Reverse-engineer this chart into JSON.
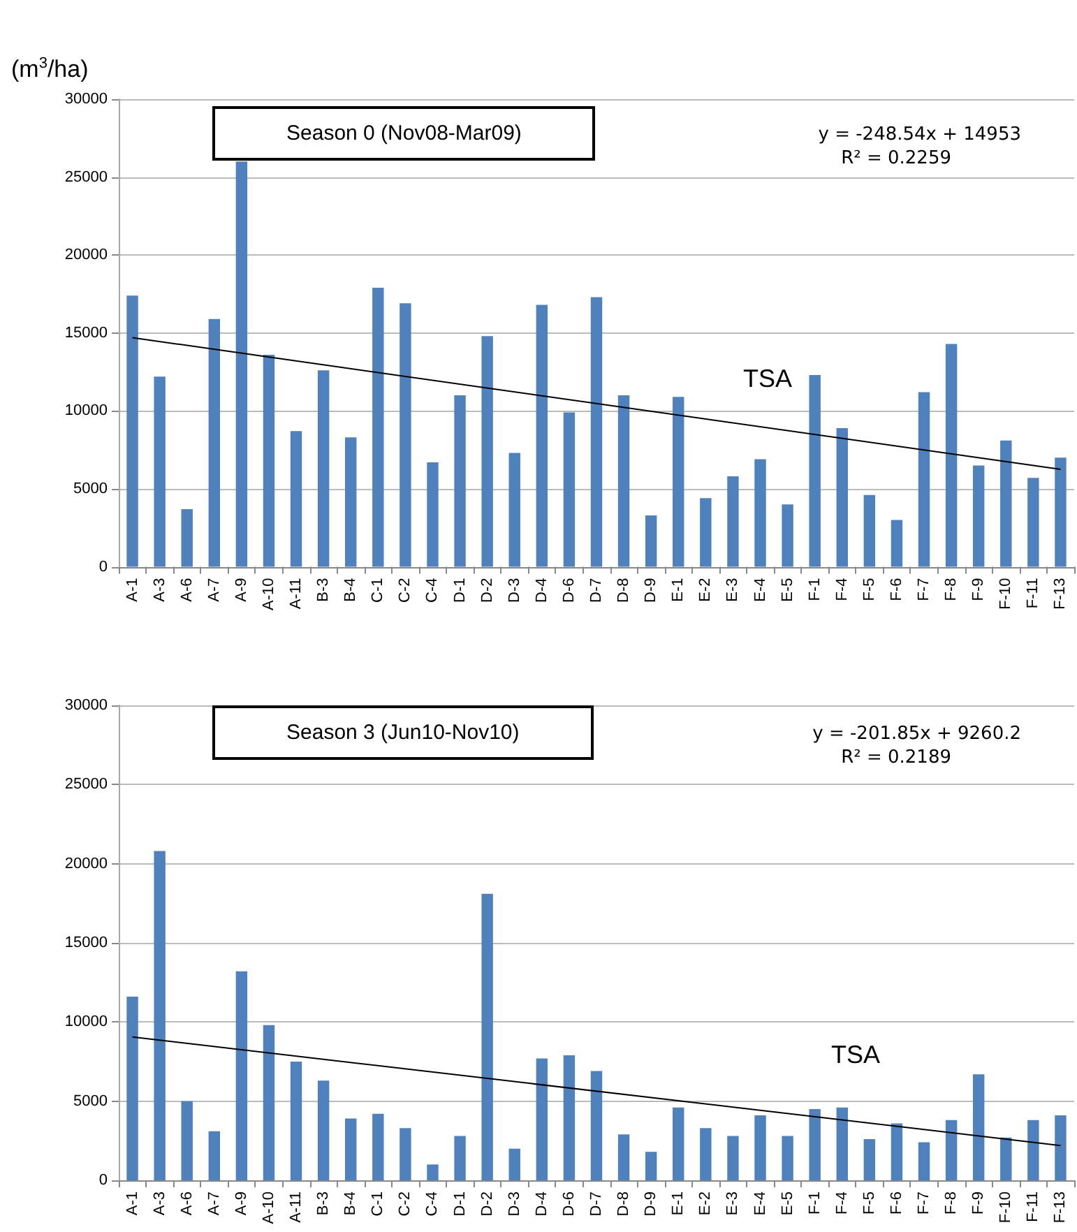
{
  "chart_data": [
    {
      "type": "bar",
      "title": "Season 0 (Nov08-Mar09)",
      "ylabel": "(m$^{3}$/ha)",
      "categories": [
        "A-1",
        "A-3",
        "A-6",
        "A-7",
        "A-9",
        "A-10",
        "A-11",
        "B-3",
        "B-4",
        "C-1",
        "C-2",
        "C-4",
        "D-1",
        "D-2",
        "D-3",
        "D-4",
        "D-6",
        "D-7",
        "D-8",
        "D-9",
        "E-1",
        "E-2",
        "E-3",
        "E-4",
        "E-5",
        "F-1",
        "F-4",
        "F-5",
        "F-6",
        "F-7",
        "F-8",
        "F-9",
        "F-10",
        "F-11",
        "F-13"
      ],
      "series": [
        {
          "color": "#4f81bd",
          "values": [
            17400,
            12200,
            3700,
            15900,
            26000,
            13600,
            8700,
            12600,
            8300,
            17900,
            16900,
            6700,
            11000,
            14800,
            7300,
            16800,
            9900,
            17300,
            11000,
            3300,
            10900,
            4400,
            5800,
            6900,
            4000,
            12300,
            8900,
            4600,
            3000,
            11200,
            14300,
            6500,
            8100,
            5700,
            7000
          ]
        },
        {
          "type": "line",
          "color": "#000000",
          "x": [
            "A-1",
            "F-13"
          ],
          "values": [
            14700,
            6250
          ]
        }
      ],
      "annotations": [
        "y = -248.54x + 14953",
        "R² = 0.2259",
        "TSA"
      ],
      "ylim": [
        0,
        30000
      ],
      "yticks": [
        0,
        5000,
        10000,
        15000,
        20000,
        25000,
        30000
      ],
      "grid": "y"
    },
    {
      "type": "bar",
      "title": "Season 3 (Jun10-Nov10)",
      "categories": [
        "A-1",
        "A-3",
        "A-6",
        "A-7",
        "A-9",
        "A-10",
        "A-11",
        "B-3",
        "B-4",
        "C-1",
        "C-2",
        "C-4",
        "D-1",
        "D-2",
        "D-3",
        "D-4",
        "D-6",
        "D-7",
        "D-8",
        "D-9",
        "E-1",
        "E-2",
        "E-3",
        "E-4",
        "E-5",
        "F-1",
        "F-4",
        "F-5",
        "F-6",
        "F-7",
        "F-8",
        "F-9",
        "F-10",
        "F-11",
        "F-13"
      ],
      "series": [
        {
          "color": "#4f81bd",
          "values": [
            11600,
            20800,
            5000,
            3100,
            13200,
            9800,
            7500,
            6300,
            3900,
            4200,
            3300,
            1000,
            2800,
            18100,
            2000,
            7700,
            7900,
            6900,
            2900,
            1800,
            4600,
            3300,
            2800,
            4100,
            2800,
            4500,
            4600,
            2600,
            3600,
            2400,
            3800,
            6700,
            2700,
            3800,
            4100
          ]
        },
        {
          "type": "line",
          "color": "#000000",
          "x": [
            "A-1",
            "F-13"
          ],
          "values": [
            9060,
            2200
          ]
        }
      ],
      "annotations": [
        "y = -201.85x + 9260.2",
        "R² = 0.2189",
        "TSA"
      ],
      "ylim": [
        0,
        30000
      ],
      "yticks": [
        0,
        5000,
        10000,
        15000,
        20000,
        25000,
        30000
      ],
      "grid": "y"
    }
  ]
}
